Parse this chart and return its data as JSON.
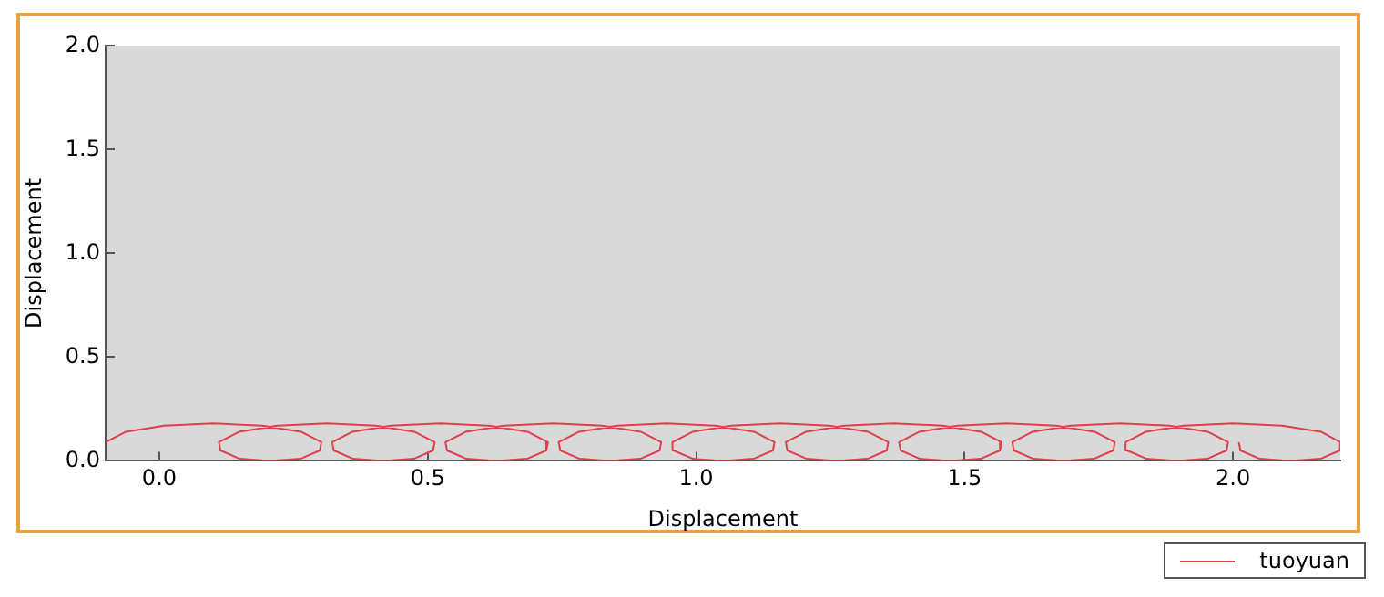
{
  "chart_data": {
    "type": "line",
    "xlabel": "Displacement",
    "ylabel": "Displacement",
    "xlim": [
      -0.1,
      2.2
    ],
    "ylim": [
      0,
      2
    ],
    "xticks": [
      {
        "value": 0,
        "label": "0.0"
      },
      {
        "value": 0.5,
        "label": "0.5"
      },
      {
        "value": 1,
        "label": "1.0"
      },
      {
        "value": 1.5,
        "label": "1.5"
      },
      {
        "value": 2,
        "label": "2.0"
      }
    ],
    "yticks": [
      {
        "value": 0,
        "label": "0.0"
      },
      {
        "value": 0.5,
        "label": "0.5"
      },
      {
        "value": 1,
        "label": "1.0"
      },
      {
        "value": 1.5,
        "label": "1.5"
      },
      {
        "value": 2,
        "label": "2.0"
      }
    ],
    "grid": false,
    "legend": "bottom right",
    "marker": "none",
    "line_style": "solid",
    "series": [
      {
        "name": "tuoyuan",
        "color": "#e0404a",
        "x": [
          -0.1,
          -0.062,
          0.009,
          0.101,
          0.192,
          0.264,
          0.302,
          0.299,
          0.263,
          0.206,
          0.15,
          0.114,
          0.111,
          0.149,
          0.22,
          0.312,
          0.403,
          0.475,
          0.513,
          0.51,
          0.474,
          0.417,
          0.361,
          0.325,
          0.322,
          0.36,
          0.431,
          0.523,
          0.614,
          0.686,
          0.724,
          0.721,
          0.685,
          0.628,
          0.572,
          0.536,
          0.533,
          0.571,
          0.642,
          0.734,
          0.825,
          0.897,
          0.935,
          0.932,
          0.896,
          0.839,
          0.783,
          0.747,
          0.744,
          0.782,
          0.853,
          0.945,
          1.036,
          1.108,
          1.146,
          1.143,
          1.107,
          1.05,
          0.994,
          0.958,
          0.956,
          0.994,
          1.065,
          1.157,
          1.248,
          1.32,
          1.358,
          1.355,
          1.319,
          1.262,
          1.206,
          1.17,
          1.167,
          1.205,
          1.276,
          1.368,
          1.459,
          1.531,
          1.569,
          1.566,
          1.53,
          1.473,
          1.417,
          1.381,
          1.378,
          1.416,
          1.487,
          1.579,
          1.67,
          1.742,
          1.78,
          1.777,
          1.741,
          1.684,
          1.628,
          1.592,
          1.589,
          1.627,
          1.698,
          1.79,
          1.881,
          1.953,
          1.991,
          1.988,
          1.952,
          1.895,
          1.839,
          1.803,
          1.8,
          1.838,
          1.909,
          2.001,
          2.092,
          2.164,
          2.2,
          2.199,
          2.163,
          2.106,
          2.05,
          2.014,
          2.011
        ],
        "values": [
          0.09,
          0.14,
          0.17,
          0.18,
          0.17,
          0.14,
          0.09,
          0.05,
          0.01,
          0,
          0.01,
          0.05,
          0.09,
          0.14,
          0.17,
          0.18,
          0.17,
          0.14,
          0.09,
          0.05,
          0.01,
          0,
          0.01,
          0.05,
          0.09,
          0.14,
          0.17,
          0.18,
          0.17,
          0.14,
          0.09,
          0.05,
          0.01,
          0,
          0.01,
          0.05,
          0.09,
          0.14,
          0.17,
          0.18,
          0.17,
          0.14,
          0.09,
          0.05,
          0.01,
          0,
          0.01,
          0.05,
          0.09,
          0.14,
          0.17,
          0.18,
          0.17,
          0.14,
          0.09,
          0.05,
          0.01,
          0,
          0.01,
          0.05,
          0.09,
          0.14,
          0.17,
          0.18,
          0.17,
          0.14,
          0.09,
          0.05,
          0.01,
          0,
          0.01,
          0.05,
          0.09,
          0.14,
          0.17,
          0.18,
          0.17,
          0.14,
          0.09,
          0.05,
          0.01,
          0,
          0.01,
          0.05,
          0.09,
          0.14,
          0.17,
          0.18,
          0.17,
          0.14,
          0.09,
          0.05,
          0.01,
          0,
          0.01,
          0.05,
          0.09,
          0.14,
          0.17,
          0.18,
          0.17,
          0.14,
          0.09,
          0.05,
          0.01,
          0,
          0.01,
          0.05,
          0.09,
          0.14,
          0.17,
          0.18,
          0.17,
          0.14,
          0.09,
          0.05,
          0.01,
          0,
          0.01,
          0.05,
          0.09
        ]
      }
    ]
  }
}
